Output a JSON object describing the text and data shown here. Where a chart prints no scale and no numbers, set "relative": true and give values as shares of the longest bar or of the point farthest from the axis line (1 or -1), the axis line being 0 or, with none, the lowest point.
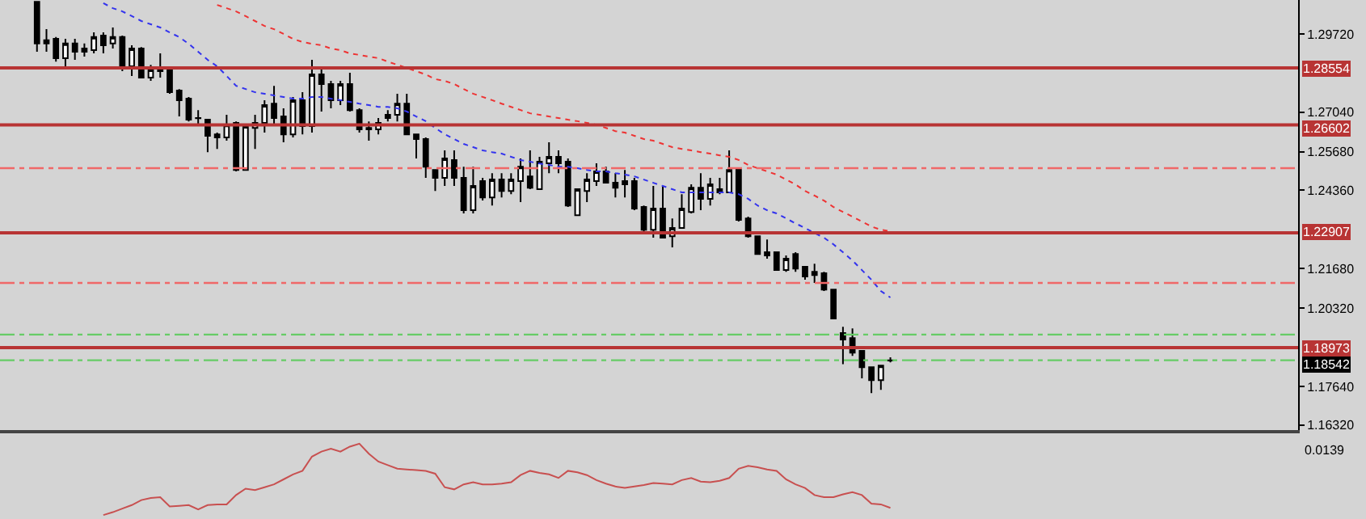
{
  "chart_data": [
    {
      "type": "candlestick",
      "categories": [
        null,
        null,
        null,
        null,
        null,
        null,
        null,
        null,
        null,
        null,
        null,
        null,
        null,
        null,
        null,
        null,
        null,
        null,
        null,
        null,
        null,
        null,
        null,
        null,
        null,
        null,
        null,
        null,
        null,
        null,
        null,
        null,
        null,
        null,
        null,
        null,
        null,
        null,
        null,
        null,
        null,
        null,
        null,
        null,
        null,
        null,
        null,
        null,
        null,
        null,
        null,
        null,
        null,
        null,
        null,
        null,
        null,
        null,
        null,
        null,
        null,
        null,
        null,
        null,
        null,
        null,
        null,
        null,
        null,
        null,
        null,
        null,
        null,
        null,
        null,
        null,
        null,
        null,
        null,
        null,
        null,
        null,
        null,
        null,
        null,
        null,
        null,
        null,
        null,
        null,
        null
      ],
      "ohlc": [
        [
          1.3082,
          1.3082,
          1.2911,
          1.2939
        ],
        [
          1.295,
          1.2988,
          1.2911,
          1.2939
        ],
        [
          1.2955,
          1.2961,
          1.2877,
          1.2889
        ],
        [
          1.2889,
          1.2955,
          1.285,
          1.2939
        ],
        [
          1.2939,
          1.2955,
          1.2883,
          1.2911
        ],
        [
          1.2911,
          1.2939,
          1.2894,
          1.2922
        ],
        [
          1.2916,
          1.2977,
          1.2905,
          1.2961
        ],
        [
          1.2966,
          1.2977,
          1.2905,
          1.2933
        ],
        [
          1.2939,
          1.2994,
          1.2922,
          1.2961
        ],
        [
          1.2961,
          1.2966,
          1.2844,
          1.2855
        ],
        [
          1.2861,
          1.2933,
          1.2828,
          1.2922
        ],
        [
          1.2922,
          1.2927,
          1.2822,
          1.2822
        ],
        [
          1.2822,
          1.2866,
          1.2811,
          1.285
        ],
        [
          1.285,
          1.2905,
          1.2822,
          1.2844
        ],
        [
          1.285,
          1.2855,
          1.2767,
          1.2772
        ],
        [
          1.2778,
          1.2783,
          1.2689,
          1.2745
        ],
        [
          1.275,
          1.2756,
          1.2672,
          1.2678
        ],
        [
          1.2684,
          1.2711,
          1.2661,
          1.2683
        ],
        [
          1.2678,
          1.2678,
          1.2567,
          1.2623
        ],
        [
          1.2628,
          1.2634,
          1.2578,
          1.2617
        ],
        [
          1.2617,
          1.2695,
          1.2606,
          1.2661
        ],
        [
          1.2667,
          1.2672,
          1.2501,
          1.2506
        ],
        [
          1.2506,
          1.2661,
          1.2506,
          1.2656
        ],
        [
          1.265,
          1.2695,
          1.2578,
          1.2667
        ],
        [
          1.2667,
          1.2745,
          1.2634,
          1.2728
        ],
        [
          1.2733,
          1.2794,
          1.2656,
          1.2684
        ],
        [
          1.2689,
          1.2717,
          1.2601,
          1.2628
        ],
        [
          1.2628,
          1.2756,
          1.2617,
          1.2745
        ],
        [
          1.2745,
          1.2772,
          1.2628,
          1.2656
        ],
        [
          1.2656,
          1.2883,
          1.2634,
          1.2833
        ],
        [
          1.2833,
          1.285,
          1.2706,
          1.28
        ],
        [
          1.28,
          1.2811,
          1.2717,
          1.2745
        ],
        [
          1.2745,
          1.2811,
          1.2728,
          1.28
        ],
        [
          1.28,
          1.2839,
          1.2706,
          1.2711
        ],
        [
          1.2711,
          1.2717,
          1.2634,
          1.2645
        ],
        [
          1.265,
          1.2672,
          1.2606,
          1.2645
        ],
        [
          1.2645,
          1.2684,
          1.2628,
          1.2667
        ],
        [
          1.2684,
          1.2711,
          1.2672,
          1.2695
        ],
        [
          1.2695,
          1.2767,
          1.2672,
          1.2733
        ],
        [
          1.2733,
          1.2767,
          1.2628,
          1.2628
        ],
        [
          1.2628,
          1.2628,
          1.2545,
          1.2612
        ],
        [
          1.2612,
          1.2617,
          1.2479,
          1.2517
        ],
        [
          1.2506,
          1.2506,
          1.2434,
          1.2479
        ],
        [
          1.2479,
          1.2573,
          1.2451,
          1.2545
        ],
        [
          1.254,
          1.2573,
          1.2451,
          1.2479
        ],
        [
          1.2479,
          1.2517,
          1.2357,
          1.2368
        ],
        [
          1.2368,
          1.2517,
          1.2357,
          1.2451
        ],
        [
          1.2468,
          1.2479,
          1.2401,
          1.2412
        ],
        [
          1.2412,
          1.2495,
          1.2384,
          1.2473
        ],
        [
          1.2473,
          1.2495,
          1.2412,
          1.2434
        ],
        [
          1.2434,
          1.2495,
          1.2423,
          1.2473
        ],
        [
          1.2468,
          1.2545,
          1.2396,
          1.2517
        ],
        [
          1.2484,
          1.2573,
          1.244,
          1.2445
        ],
        [
          1.244,
          1.2551,
          1.244,
          1.2534
        ],
        [
          1.2529,
          1.2601,
          1.2495,
          1.2551
        ],
        [
          1.2551,
          1.2573,
          1.2495,
          1.2529
        ],
        [
          1.2534,
          1.2545,
          1.2379,
          1.2384
        ],
        [
          1.2351,
          1.244,
          1.2351,
          1.244
        ],
        [
          1.2434,
          1.2495,
          1.2396,
          1.2473
        ],
        [
          1.2468,
          1.2529,
          1.2451,
          1.2501
        ],
        [
          1.2501,
          1.2517,
          1.2462,
          1.2462
        ],
        [
          1.2462,
          1.2495,
          1.2412,
          1.2445
        ],
        [
          1.2457,
          1.2506,
          1.2412,
          1.2468
        ],
        [
          1.2468,
          1.2479,
          1.2368,
          1.2374
        ],
        [
          1.2379,
          1.2384,
          1.2296,
          1.2301
        ],
        [
          1.2301,
          1.2451,
          1.2274,
          1.2374
        ],
        [
          1.2374,
          1.2451,
          1.2274,
          1.2274
        ],
        [
          1.2279,
          1.234,
          1.2241,
          1.2307
        ],
        [
          1.2307,
          1.2423,
          1.2307,
          1.2374
        ],
        [
          1.2362,
          1.2457,
          1.2357,
          1.2445
        ],
        [
          1.2445,
          1.2495,
          1.2368,
          1.2407
        ],
        [
          1.2407,
          1.2479,
          1.2384,
          1.2457
        ],
        [
          1.244,
          1.2479,
          1.2423,
          1.2429
        ],
        [
          1.2429,
          1.2573,
          1.2429,
          1.2506
        ],
        [
          1.2512,
          1.2512,
          1.2329,
          1.2335
        ],
        [
          1.234,
          1.2346,
          1.2274,
          1.2279
        ],
        [
          1.2279,
          1.2279,
          1.2218,
          1.2218
        ],
        [
          1.2224,
          1.2268,
          1.2202,
          1.2213
        ],
        [
          1.2224,
          1.2224,
          1.2163,
          1.2163
        ],
        [
          1.2163,
          1.2213,
          1.2157,
          1.2202
        ],
        [
          1.2218,
          1.2224,
          1.2157,
          1.2168
        ],
        [
          1.2174,
          1.2174,
          1.213,
          1.2141
        ],
        [
          1.2146,
          1.2185,
          1.2119,
          1.2157
        ],
        [
          1.2152,
          1.2157,
          1.2091,
          1.2096
        ],
        [
          1.2096,
          1.2096,
          1.1997,
          1.1997
        ],
        [
          1.1947,
          1.1969,
          1.1841,
          1.1925
        ],
        [
          1.193,
          1.1963,
          1.1869,
          1.188
        ],
        [
          1.1886,
          1.1886,
          1.1792,
          1.183
        ],
        [
          1.183,
          1.183,
          1.1742,
          1.1786
        ],
        [
          1.1786,
          1.1836,
          1.1753,
          1.1836
        ],
        [
          1.1853,
          1.1864,
          1.1847,
          1.1854
        ]
      ],
      "series": [
        {
          "type": "line",
          "color": "#3333ee",
          "line_style": "dotted",
          "values": [
            null,
            null,
            null,
            null,
            null,
            null,
            null,
            1.3077,
            1.306,
            1.3049,
            1.3033,
            1.3016,
            1.3005,
            1.2994,
            1.2977,
            1.2961,
            1.2938,
            1.2911,
            1.2883,
            1.2861,
            1.2828,
            1.2794,
            1.2783,
            1.2772,
            1.2767,
            1.2761,
            1.2756,
            1.275,
            1.275,
            1.2756,
            1.2756,
            1.275,
            1.2745,
            1.2739,
            1.2733,
            1.2728,
            1.2722,
            1.2722,
            1.2717,
            1.2706,
            1.2689,
            1.2673,
            1.265,
            1.2628,
            1.2612,
            1.2595,
            1.2584,
            1.2573,
            1.2567,
            1.2562,
            1.2551,
            1.254,
            1.2534,
            1.2528,
            1.2523,
            1.2517,
            1.2517,
            1.2512,
            1.2506,
            1.2501,
            1.2501,
            1.2495,
            1.249,
            1.2484,
            1.2473,
            1.2462,
            1.2451,
            1.244,
            1.2429,
            1.2429,
            1.2429,
            1.2429,
            1.2429,
            1.2429,
            1.2423,
            1.2407,
            1.2384,
            1.2368,
            1.2357,
            1.234,
            1.2323,
            1.2307,
            1.229,
            1.2274,
            1.2251,
            1.2224,
            1.2196,
            1.2163,
            1.213,
            1.2091,
            1.2069
          ]
        },
        {
          "type": "line",
          "color": "#ee3333",
          "line_style": "dotted",
          "values": [
            null,
            null,
            null,
            null,
            null,
            null,
            null,
            null,
            null,
            null,
            null,
            null,
            null,
            null,
            null,
            null,
            null,
            null,
            null,
            1.3071,
            1.306,
            1.3049,
            1.3033,
            1.3016,
            1.2999,
            1.2988,
            1.2972,
            1.2955,
            1.2944,
            1.2938,
            1.2933,
            1.2922,
            1.2916,
            1.2905,
            1.29,
            1.2894,
            1.2889,
            1.2877,
            1.2866,
            1.2855,
            1.2844,
            1.2833,
            1.2817,
            1.2811,
            1.28,
            1.2783,
            1.2767,
            1.2756,
            1.2745,
            1.2733,
            1.2722,
            1.2711,
            1.27,
            1.2695,
            1.2689,
            1.2684,
            1.2678,
            1.2673,
            1.2667,
            1.2661,
            1.265,
            1.2639,
            1.2634,
            1.2623,
            1.2612,
            1.2606,
            1.2595,
            1.2584,
            1.2578,
            1.2573,
            1.2567,
            1.2562,
            1.2556,
            1.2551,
            1.254,
            1.2523,
            1.2512,
            1.2501,
            1.249,
            1.2473,
            1.2456,
            1.2434,
            1.2418,
            1.2401,
            1.2379,
            1.2362,
            1.2346,
            1.2329,
            1.2312,
            1.2301,
            1.2296
          ]
        }
      ],
      "ylim": [
        1.1615,
        1.3088
      ],
      "yticks": [
        {
          "value": 1.2972,
          "label": "1.29720"
        },
        {
          "value": 1.2704,
          "label": "1.27040"
        },
        {
          "value": 1.2568,
          "label": "1.25680"
        },
        {
          "value": 1.2436,
          "label": "1.24360"
        },
        {
          "value": 1.2168,
          "label": "1.21680"
        },
        {
          "value": 1.2032,
          "label": "1.20320"
        },
        {
          "value": 1.1764,
          "label": "1.17640"
        },
        {
          "value": 1.1632,
          "label": "1.16320"
        }
      ],
      "ref_lines": [
        {
          "axis": "y",
          "value": 1.28554,
          "label": "1.28554",
          "color": "#b83434",
          "line_style": "solid"
        },
        {
          "axis": "y",
          "value": 1.26602,
          "label": "1.26602",
          "color": "#b83434",
          "line_style": "solid"
        },
        {
          "axis": "y",
          "value": 1.2512,
          "color": "#f06868",
          "line_style": "dashed"
        },
        {
          "axis": "y",
          "value": 1.22907,
          "label": "1.22907",
          "color": "#b83434",
          "line_style": "solid"
        },
        {
          "axis": "y",
          "value": 1.2119,
          "color": "#f06868",
          "line_style": "dashed"
        },
        {
          "axis": "y",
          "value": 1.1942,
          "color": "#66cc66",
          "line_style": "dashed"
        },
        {
          "axis": "y",
          "value": 1.18973,
          "label": "1.18973",
          "color": "#b83434",
          "line_style": "solid"
        },
        {
          "axis": "y",
          "value": 1.18542,
          "label": "1.18542",
          "color": "#66cc66",
          "line_style": "dashed"
        }
      ],
      "tick_labels": "y",
      "grid": false
    },
    {
      "type": "line",
      "relative": true,
      "color": "#c85050",
      "categories": [
        null,
        null,
        null,
        null,
        null,
        null,
        null,
        null,
        null,
        null,
        null,
        null,
        null,
        null,
        null,
        null,
        null,
        null,
        null,
        null,
        null,
        null,
        null,
        null,
        null,
        null,
        null,
        null,
        null,
        null,
        null,
        null,
        null,
        null,
        null,
        null,
        null,
        null,
        null,
        null,
        null,
        null,
        null,
        null,
        null,
        null,
        null,
        null,
        null,
        null,
        null,
        null,
        null,
        null,
        null,
        null,
        null,
        null,
        null,
        null,
        null,
        null,
        null,
        null,
        null,
        null,
        null,
        null,
        null,
        null,
        null,
        null,
        null,
        null,
        null,
        null,
        null,
        null,
        null,
        null,
        null,
        null,
        null,
        null,
        null,
        null,
        null,
        null,
        null,
        null,
        null
      ],
      "values": [
        null,
        null,
        null,
        null,
        null,
        null,
        null,
        0,
        0.04,
        0.09,
        0.14,
        0.21,
        0.24,
        0.25,
        0.12,
        0.13,
        0.14,
        0.08,
        0.14,
        0.15,
        0.15,
        0.28,
        0.37,
        0.35,
        0.39,
        0.43,
        0.5,
        0.57,
        0.62,
        0.82,
        0.89,
        0.93,
        0.89,
        0.96,
        1,
        0.86,
        0.75,
        0.7,
        0.65,
        0.64,
        0.63,
        0.62,
        0.58,
        0.39,
        0.36,
        0.43,
        0.46,
        0.43,
        0.43,
        0.44,
        0.46,
        0.56,
        0.62,
        0.59,
        0.57,
        0.52,
        0.62,
        0.6,
        0.56,
        0.49,
        0.44,
        0.4,
        0.38,
        0.4,
        0.42,
        0.45,
        0.44,
        0.43,
        0.49,
        0.52,
        0.47,
        0.46,
        0.48,
        0.52,
        0.65,
        0.69,
        0.67,
        0.64,
        0.62,
        0.5,
        0.43,
        0.38,
        0.28,
        0.25,
        0.25,
        0.29,
        0.32,
        0.28,
        0.16,
        0.15,
        0.1
      ],
      "annotations": [
        "0.0139"
      ],
      "tick_labels": false
    }
  ]
}
